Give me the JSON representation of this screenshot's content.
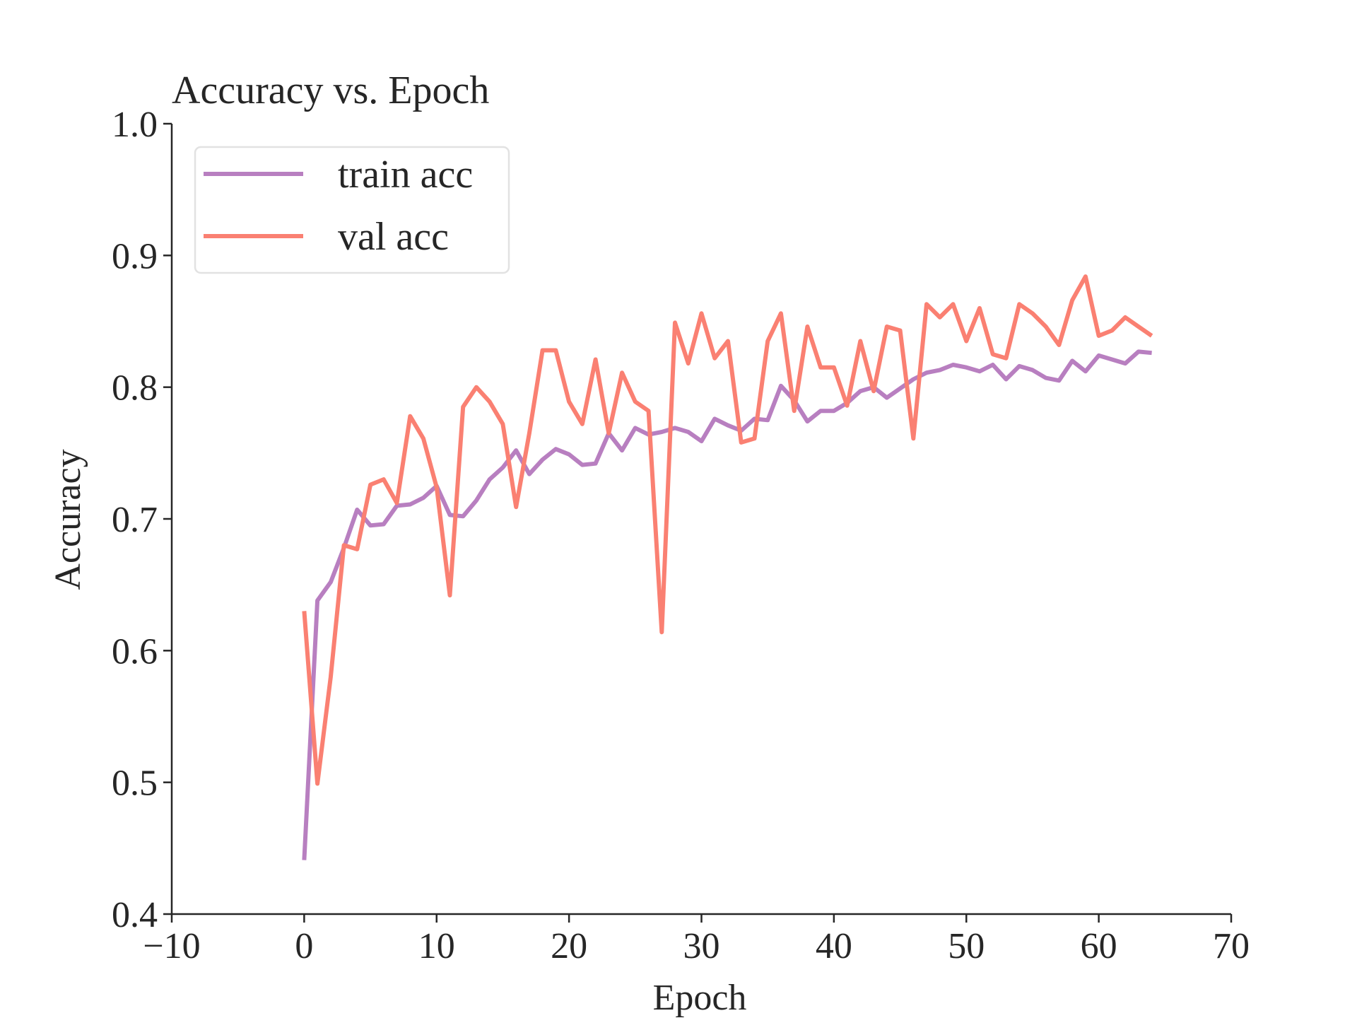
{
  "chart_data": {
    "type": "line",
    "title": "Accuracy vs. Epoch",
    "xlabel": "Epoch",
    "ylabel": "Accuracy",
    "xlim": [
      -10,
      70
    ],
    "ylim": [
      0.4,
      1.0
    ],
    "xticks": [
      -10,
      0,
      10,
      20,
      30,
      40,
      50,
      60,
      70
    ],
    "xtick_labels": [
      "−10",
      "0",
      "10",
      "20",
      "30",
      "40",
      "50",
      "60",
      "70"
    ],
    "yticks": [
      0.4,
      0.5,
      0.6,
      0.7,
      0.8,
      0.9,
      1.0
    ],
    "ytick_labels": [
      "0.4",
      "0.5",
      "0.6",
      "0.7",
      "0.8",
      "0.9",
      "1.0"
    ],
    "grid": false,
    "legend_position": "top-left",
    "x": [
      0,
      1,
      2,
      3,
      4,
      5,
      6,
      7,
      8,
      9,
      10,
      11,
      12,
      13,
      14,
      15,
      16,
      17,
      18,
      19,
      20,
      21,
      22,
      23,
      24,
      25,
      26,
      27,
      28,
      29,
      30,
      31,
      32,
      33,
      34,
      35,
      36,
      37,
      38,
      39,
      40,
      41,
      42,
      43,
      44,
      45,
      46,
      47,
      48,
      49,
      50,
      51,
      52,
      53,
      54,
      55,
      56,
      57,
      58,
      59,
      60,
      61,
      62,
      63,
      64
    ],
    "series": [
      {
        "name": "train acc",
        "color": "#b87fc0",
        "values": [
          0.441,
          0.638,
          0.652,
          0.678,
          0.707,
          0.695,
          0.696,
          0.71,
          0.711,
          0.716,
          0.725,
          0.703,
          0.702,
          0.714,
          0.73,
          0.739,
          0.752,
          0.734,
          0.745,
          0.753,
          0.749,
          0.741,
          0.742,
          0.765,
          0.752,
          0.769,
          0.764,
          0.766,
          0.769,
          0.766,
          0.759,
          0.776,
          0.771,
          0.767,
          0.776,
          0.775,
          0.801,
          0.79,
          0.774,
          0.782,
          0.782,
          0.788,
          0.797,
          0.8,
          0.792,
          0.799,
          0.806,
          0.811,
          0.813,
          0.817,
          0.815,
          0.812,
          0.817,
          0.806,
          0.816,
          0.813,
          0.807,
          0.805,
          0.82,
          0.812,
          0.824,
          0.821,
          0.818,
          0.827,
          0.826
        ]
      },
      {
        "name": "val acc",
        "color": "#fa8072",
        "values": [
          0.63,
          0.499,
          0.58,
          0.68,
          0.677,
          0.726,
          0.73,
          0.712,
          0.778,
          0.761,
          0.724,
          0.642,
          0.785,
          0.8,
          0.789,
          0.772,
          0.709,
          0.765,
          0.828,
          0.828,
          0.789,
          0.772,
          0.821,
          0.765,
          0.811,
          0.789,
          0.782,
          0.614,
          0.849,
          0.818,
          0.856,
          0.822,
          0.835,
          0.758,
          0.761,
          0.835,
          0.856,
          0.782,
          0.846,
          0.815,
          0.815,
          0.786,
          0.835,
          0.797,
          0.846,
          0.843,
          0.761,
          0.863,
          0.853,
          0.863,
          0.835,
          0.86,
          0.825,
          0.822,
          0.863,
          0.856,
          0.846,
          0.832,
          0.866,
          0.884,
          0.839,
          0.843,
          0.853,
          0.846,
          0.839
        ]
      }
    ]
  }
}
